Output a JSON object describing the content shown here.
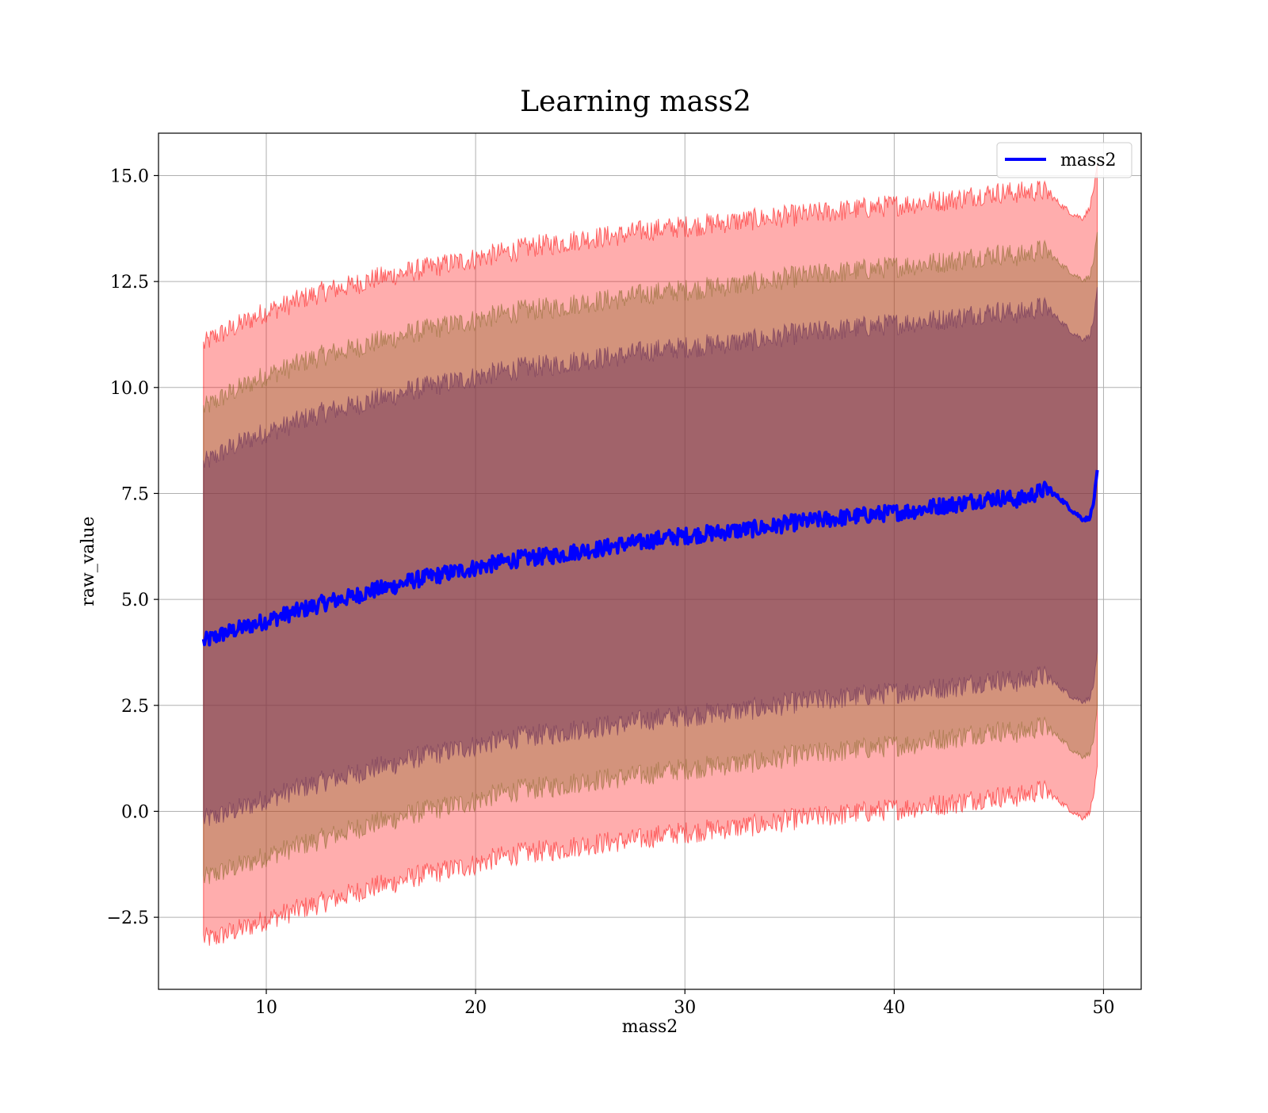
{
  "chart_data": {
    "type": "line",
    "title": "Learning mass2",
    "xlabel": "mass2",
    "ylabel": "raw_value",
    "xlim": [
      4.85,
      51.8
    ],
    "ylim": [
      -4.2,
      16.0
    ],
    "xticks": [
      10,
      20,
      30,
      40,
      50
    ],
    "xtick_labels": [
      "10",
      "20",
      "30",
      "40",
      "50"
    ],
    "yticks": [
      -2.5,
      0.0,
      2.5,
      5.0,
      7.5,
      10.0,
      12.5,
      15.0
    ],
    "ytick_labels": [
      "−2.5",
      "0.0",
      "2.5",
      "5.0",
      "7.5",
      "10.0",
      "12.5",
      "15.0"
    ],
    "grid": true,
    "legend_position": "upper right",
    "series": [
      {
        "name": "mass2",
        "color": "#0000ff",
        "x": [
          7.0,
          7.5,
          8,
          9,
          10,
          11,
          12,
          13,
          14,
          15,
          16,
          17,
          18,
          19,
          20,
          21,
          22,
          23,
          24,
          25,
          26,
          27,
          28,
          29,
          30,
          31,
          32,
          33,
          34,
          35,
          36,
          37,
          38,
          39,
          40,
          41,
          42,
          43,
          44,
          45,
          46,
          47,
          47.3,
          48,
          48.5,
          49,
          49.3,
          49.5,
          49.7
        ],
        "values": [
          4.0,
          4.1,
          4.2,
          4.35,
          4.5,
          4.65,
          4.8,
          4.95,
          5.05,
          5.2,
          5.3,
          5.45,
          5.55,
          5.65,
          5.75,
          5.85,
          5.95,
          6.0,
          6.05,
          6.15,
          6.2,
          6.3,
          6.35,
          6.45,
          6.5,
          6.55,
          6.6,
          6.65,
          6.7,
          6.8,
          6.85,
          6.9,
          6.95,
          7.0,
          7.05,
          7.1,
          7.2,
          7.25,
          7.35,
          7.4,
          7.35,
          7.55,
          7.6,
          7.35,
          7.1,
          6.9,
          6.9,
          7.2,
          8.0
        ]
      }
    ],
    "bands": [
      {
        "level": "outer",
        "fill": "#ff0000",
        "fill_opacity": 0.32,
        "upper": [
          11.0,
          11.2,
          11.3,
          11.55,
          11.8,
          11.95,
          12.15,
          12.3,
          12.4,
          12.55,
          12.65,
          12.75,
          12.85,
          12.95,
          13.05,
          13.15,
          13.25,
          13.35,
          13.4,
          13.5,
          13.55,
          13.6,
          13.7,
          13.75,
          13.8,
          13.85,
          13.9,
          13.95,
          14.0,
          14.05,
          14.1,
          14.15,
          14.2,
          14.25,
          14.3,
          14.35,
          14.4,
          14.45,
          14.55,
          14.6,
          14.6,
          14.65,
          14.6,
          14.3,
          14.1,
          14.0,
          14.2,
          14.6,
          15.2
        ],
        "lower": [
          -3.0,
          -3.0,
          -2.9,
          -2.75,
          -2.55,
          -2.4,
          -2.25,
          -2.1,
          -1.95,
          -1.8,
          -1.7,
          -1.55,
          -1.45,
          -1.35,
          -1.25,
          -1.1,
          -1.0,
          -0.95,
          -0.9,
          -0.8,
          -0.75,
          -0.7,
          -0.65,
          -0.55,
          -0.5,
          -0.45,
          -0.4,
          -0.35,
          -0.3,
          -0.2,
          -0.15,
          -0.1,
          -0.05,
          0.0,
          0.05,
          0.1,
          0.15,
          0.2,
          0.3,
          0.35,
          0.35,
          0.5,
          0.45,
          0.2,
          0.0,
          -0.15,
          -0.05,
          0.3,
          1.0
        ]
      },
      {
        "level": "middle",
        "fill": "#8b6a2c",
        "fill_opacity": 0.38,
        "upper": [
          9.5,
          9.65,
          9.8,
          10.05,
          10.3,
          10.45,
          10.65,
          10.8,
          10.9,
          11.05,
          11.15,
          11.3,
          11.4,
          11.5,
          11.6,
          11.7,
          11.8,
          11.85,
          11.9,
          12.0,
          12.05,
          12.1,
          12.2,
          12.25,
          12.3,
          12.35,
          12.4,
          12.45,
          12.5,
          12.6,
          12.65,
          12.7,
          12.75,
          12.8,
          12.85,
          12.9,
          12.95,
          13.0,
          13.1,
          13.15,
          13.1,
          13.25,
          13.2,
          12.9,
          12.7,
          12.55,
          12.6,
          12.9,
          13.6
        ],
        "lower": [
          -1.6,
          -1.5,
          -1.4,
          -1.25,
          -1.05,
          -0.9,
          -0.75,
          -0.6,
          -0.45,
          -0.3,
          -0.2,
          -0.05,
          0.05,
          0.15,
          0.25,
          0.4,
          0.5,
          0.55,
          0.6,
          0.7,
          0.75,
          0.8,
          0.85,
          0.95,
          1.0,
          1.05,
          1.1,
          1.15,
          1.2,
          1.3,
          1.35,
          1.4,
          1.45,
          1.5,
          1.55,
          1.6,
          1.7,
          1.75,
          1.85,
          1.9,
          1.85,
          2.0,
          1.95,
          1.7,
          1.45,
          1.3,
          1.35,
          1.6,
          2.4
        ]
      },
      {
        "level": "inner",
        "fill": "#6a3058",
        "fill_opacity": 0.48,
        "upper": [
          8.2,
          8.35,
          8.5,
          8.75,
          8.95,
          9.1,
          9.3,
          9.45,
          9.55,
          9.7,
          9.8,
          9.95,
          10.05,
          10.15,
          10.25,
          10.35,
          10.45,
          10.5,
          10.55,
          10.65,
          10.7,
          10.75,
          10.85,
          10.9,
          10.95,
          11.0,
          11.05,
          11.1,
          11.15,
          11.25,
          11.3,
          11.35,
          11.4,
          11.45,
          11.5,
          11.55,
          11.6,
          11.65,
          11.75,
          11.8,
          11.75,
          11.9,
          11.85,
          11.55,
          11.3,
          11.15,
          11.2,
          11.5,
          12.3
        ],
        "lower": [
          -0.2,
          -0.15,
          -0.05,
          0.1,
          0.3,
          0.45,
          0.6,
          0.75,
          0.85,
          1.0,
          1.1,
          1.25,
          1.35,
          1.45,
          1.55,
          1.65,
          1.75,
          1.8,
          1.85,
          1.95,
          2.0,
          2.05,
          2.15,
          2.2,
          2.25,
          2.3,
          2.35,
          2.4,
          2.45,
          2.55,
          2.6,
          2.65,
          2.7,
          2.75,
          2.8,
          2.85,
          2.9,
          2.95,
          3.05,
          3.1,
          3.05,
          3.2,
          3.15,
          2.9,
          2.7,
          2.6,
          2.65,
          2.9,
          3.7
        ]
      }
    ]
  }
}
